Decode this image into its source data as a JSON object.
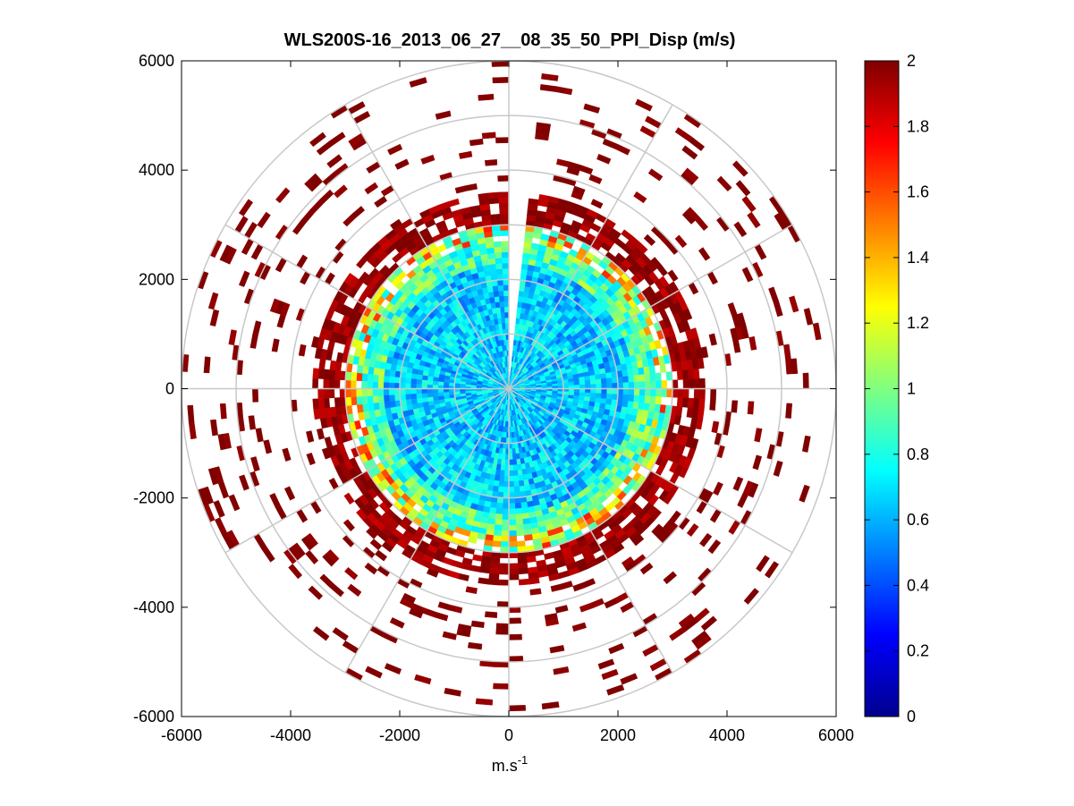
{
  "chart_data": {
    "type": "heatmap",
    "subtype": "polar-ppi",
    "title": "WLS200S-16_2013_06_27__08_35_50_PPI_Disp (m/s)",
    "xlabel_base": "m.s",
    "xlabel_exp": "-1",
    "ylabel": "",
    "xlim": [
      -6000,
      6000
    ],
    "ylim": [
      -6000,
      6000
    ],
    "x_ticks": [
      -6000,
      -4000,
      -2000,
      0,
      2000,
      4000,
      6000
    ],
    "y_ticks": [
      6000,
      4000,
      2000,
      0,
      -2000,
      -4000,
      -6000
    ],
    "x_tick_labels": [
      "-6000",
      "-4000",
      "-2000",
      "0",
      "2000",
      "4000",
      "6000"
    ],
    "y_tick_labels": [
      "6000",
      "4000",
      "2000",
      "0",
      "-2000",
      "-4000",
      "-6000"
    ],
    "polar_grid_radii": [
      1000,
      2000,
      3000,
      4000,
      5000,
      6000
    ],
    "polar_grid_spokes_deg": [
      0,
      30,
      60,
      90,
      120,
      150,
      180,
      210,
      240,
      270,
      300,
      330
    ],
    "grid": true,
    "colorbar": {
      "colormap": "jet",
      "clim": [
        0,
        2
      ],
      "ticks": [
        2,
        1.8,
        1.6,
        1.4,
        1.2,
        1,
        0.8,
        0.6,
        0.4,
        0.2,
        0
      ],
      "tick_labels": [
        "2",
        "1.8",
        "1.6",
        "1.4",
        "1.2",
        "1",
        "0.8",
        "0.6",
        "0.4",
        "0.2",
        "0"
      ]
    },
    "gap_sector_deg": [
      -1,
      7
    ],
    "radial_profile": [
      {
        "range_m": [
          0,
          2300
        ],
        "value": 0.65,
        "spread": 0.2,
        "coverage": 1.0
      },
      {
        "range_m": [
          2300,
          2700
        ],
        "value": 0.9,
        "spread": 0.25,
        "coverage": 1.0
      },
      {
        "range_m": [
          2700,
          3000
        ],
        "value": 1.2,
        "spread": 0.5,
        "coverage": 0.8
      },
      {
        "range_m": [
          3000,
          3600
        ],
        "value": 1.95,
        "spread": 0.1,
        "coverage": 0.75
      },
      {
        "range_m": [
          3600,
          6000
        ],
        "value": 2.0,
        "spread": 0.05,
        "coverage": 0.12
      }
    ]
  }
}
